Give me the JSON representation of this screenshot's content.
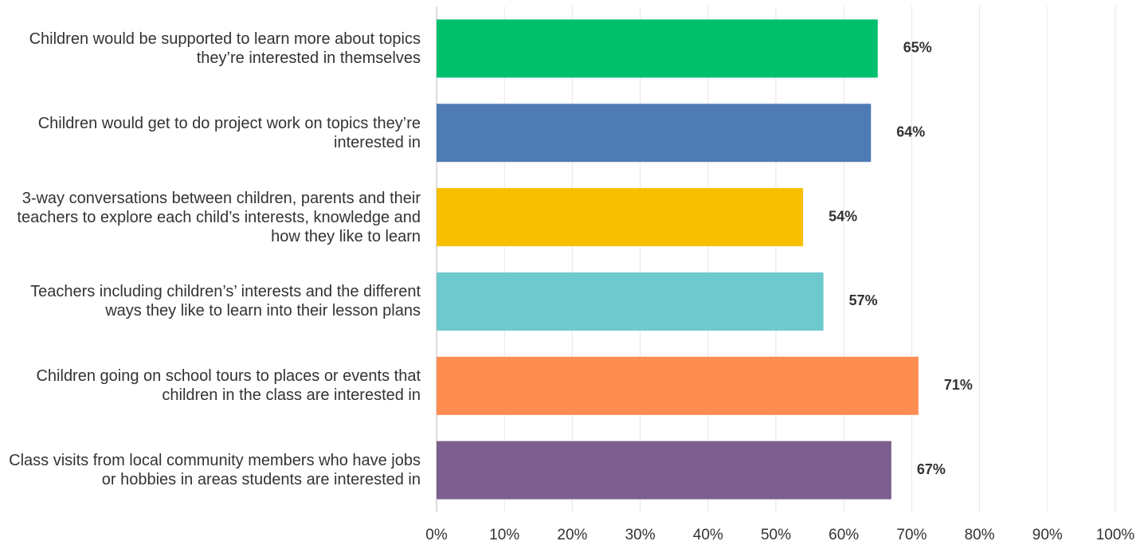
{
  "chart_data": {
    "type": "bar",
    "orientation": "horizontal",
    "categories": [
      "Children would be supported to learn more about topics they’re interested in themselves",
      "Children would get to do project work on topics they’re interested in",
      "3-way conversations between children, parents and their teachers to explore each child’s interests, knowledge and how they like to learn",
      "Teachers including children’s’ interests and the different ways they like to learn into their lesson plans",
      "Children going on school tours to places or events that children in the class are interested in",
      "Class visits from local community members who have jobs or hobbies in areas students are interested in"
    ],
    "values": [
      65,
      64,
      54,
      57,
      71,
      67
    ],
    "value_labels": [
      "65%",
      "64%",
      "54%",
      "57%",
      "71%",
      "67%"
    ],
    "colors": [
      "#00c06e",
      "#4f7bb4",
      "#f7bf00",
      "#6ec9cd",
      "#ff8c50",
      "#7c5f8e"
    ],
    "xlim": [
      0,
      100
    ],
    "xticks": [
      {
        "value": 0,
        "label": "0%"
      },
      {
        "value": 10,
        "label": "10%"
      },
      {
        "value": 20,
        "label": "20%"
      },
      {
        "value": 30,
        "label": "30%"
      },
      {
        "value": 40,
        "label": "40%"
      },
      {
        "value": 50,
        "label": "50%"
      },
      {
        "value": 60,
        "label": "60%"
      },
      {
        "value": 70,
        "label": "70%"
      },
      {
        "value": 80,
        "label": "80%"
      },
      {
        "value": 90,
        "label": "90%"
      },
      {
        "value": 100,
        "label": "100%"
      }
    ],
    "grid": true
  }
}
